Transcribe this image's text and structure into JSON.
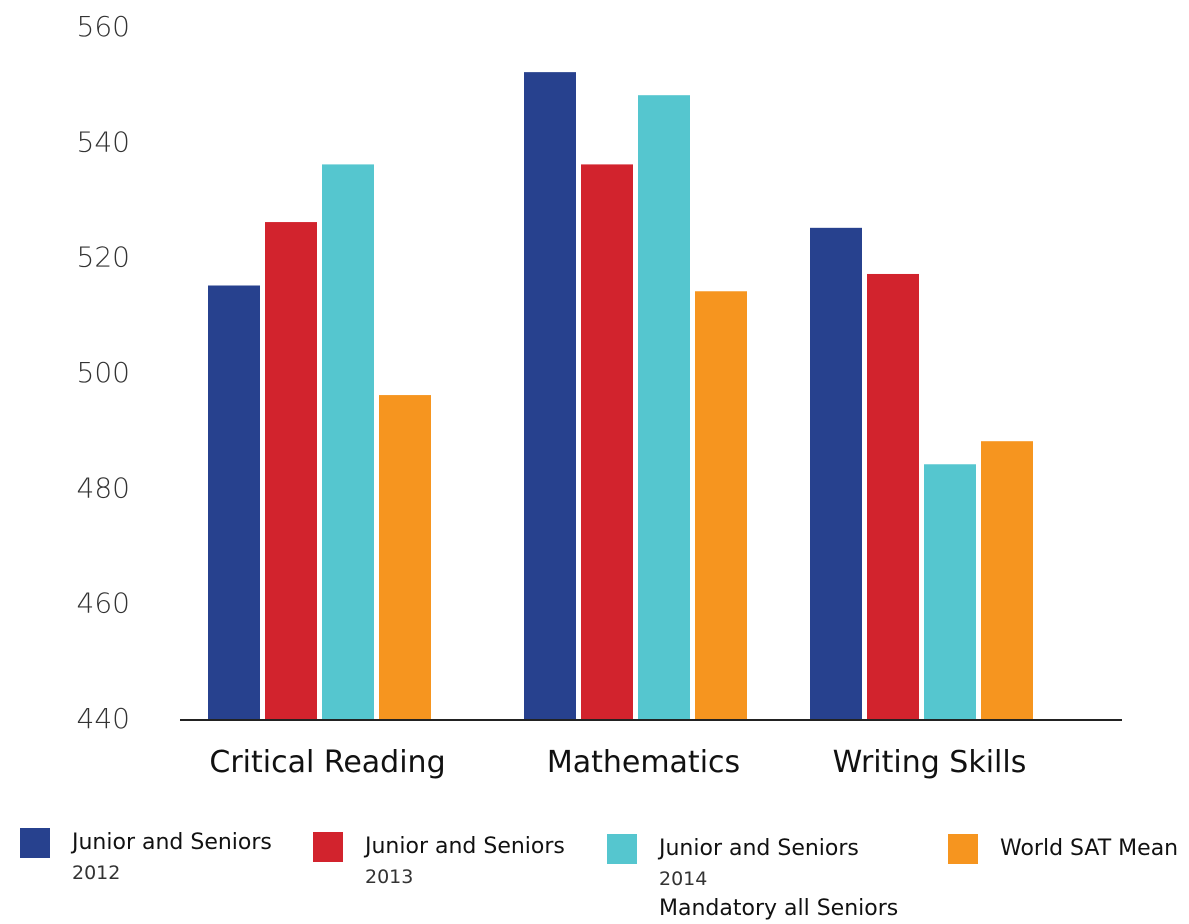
{
  "chart_data": {
    "type": "bar",
    "title": "",
    "xlabel": "",
    "ylabel": "",
    "ylim": [
      440,
      560
    ],
    "yticks": [
      560,
      540,
      520,
      500,
      480,
      460,
      440
    ],
    "grid": false,
    "legend_position": "bottom",
    "categories": [
      "Critical Reading",
      "Mathematics",
      "Writing Skills"
    ],
    "series": [
      {
        "name": "Junior and Seniors",
        "sub": "2012",
        "sub2": "",
        "color": "#27418E",
        "values": [
          515,
          552,
          525
        ]
      },
      {
        "name": "Junior and Seniors",
        "sub": "2013",
        "sub2": "",
        "color": "#D2232D",
        "values": [
          526,
          536,
          517
        ]
      },
      {
        "name": "Junior and Seniors",
        "sub": "2014",
        "sub2": "Mandatory all Seniors",
        "color": "#55C6CF",
        "values": [
          536,
          548,
          484
        ]
      },
      {
        "name": "World SAT Mean",
        "sub": "",
        "sub2": "",
        "color": "#F6951F",
        "values": [
          496,
          514,
          488
        ]
      }
    ]
  }
}
